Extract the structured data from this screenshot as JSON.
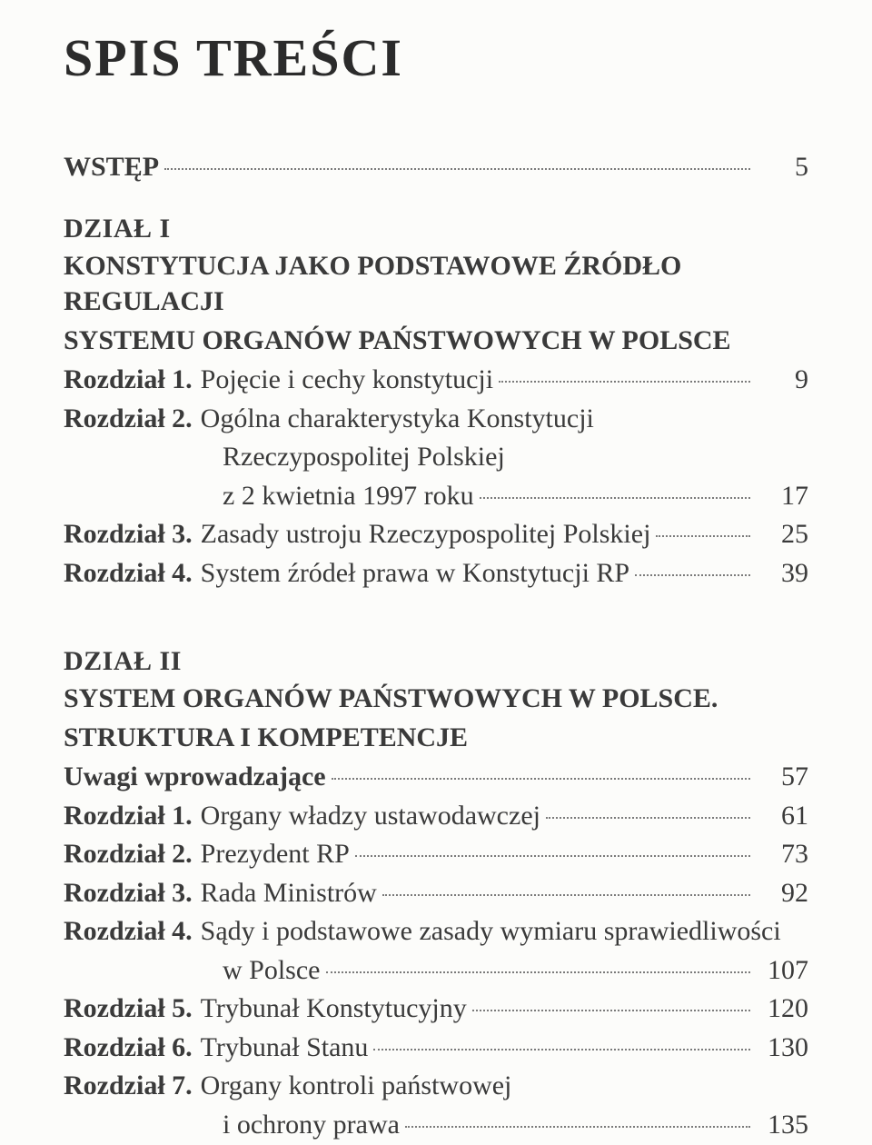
{
  "title": "SPIS TREŚCI",
  "intro": {
    "label": "WSTĘP",
    "page": "5"
  },
  "part1": {
    "head": "DZIAŁ I",
    "subtitle_l1": "KONSTYTUCJA JAKO PODSTAWOWE ŹRÓDŁO REGULACJI",
    "subtitle_l2": "SYSTEMU ORGANÓW PAŃSTWOWYCH W POLSCE",
    "rows": [
      {
        "prefix": "Rozdział 1.",
        "text": "Pojęcie i cechy konstytucji",
        "page": "9"
      },
      {
        "prefix": "Rozdział 2.",
        "text_l1": "Ogólna charakterystyka Konstytucji",
        "text_l2": "Rzeczypospolitej Polskiej",
        "text_l3": "z 2 kwietnia 1997 roku",
        "page": "17"
      },
      {
        "prefix": "Rozdział 3.",
        "text": "Zasady ustroju Rzeczypospolitej Polskiej",
        "page": "25"
      },
      {
        "prefix": "Rozdział 4.",
        "text": "System źródeł prawa w Konstytucji RP",
        "page": "39"
      }
    ]
  },
  "part2": {
    "head": "DZIAŁ II",
    "subtitle_l1": "SYSTEM ORGANÓW PAŃSTWOWYCH W POLSCE.",
    "subtitle_l2": "STRUKTURA I KOMPETENCJE",
    "intro_row": {
      "prefix": "Uwagi wprowadzające",
      "page": "57"
    },
    "rows": [
      {
        "prefix": "Rozdział 1.",
        "text": "Organy władzy ustawodawczej",
        "page": "61"
      },
      {
        "prefix": "Rozdział 2.",
        "text": "Prezydent RP",
        "page": "73"
      },
      {
        "prefix": "Rozdział 3.",
        "text": "Rada Ministrów",
        "page": "92"
      },
      {
        "prefix": "Rozdział 4.",
        "text_l1": "Sądy i podstawowe zasady wymiaru sprawiedliwości",
        "text_l2": "w Polsce",
        "page": "107"
      },
      {
        "prefix": "Rozdział 5.",
        "text": "Trybunał Konstytucyjny",
        "page": "120"
      },
      {
        "prefix": "Rozdział 6.",
        "text": "Trybunał Stanu",
        "page": "130"
      },
      {
        "prefix": "Rozdział 7.",
        "text_l1": "Organy kontroli państwowej",
        "text_l2": "i ochrony prawa",
        "page": "135"
      }
    ]
  }
}
